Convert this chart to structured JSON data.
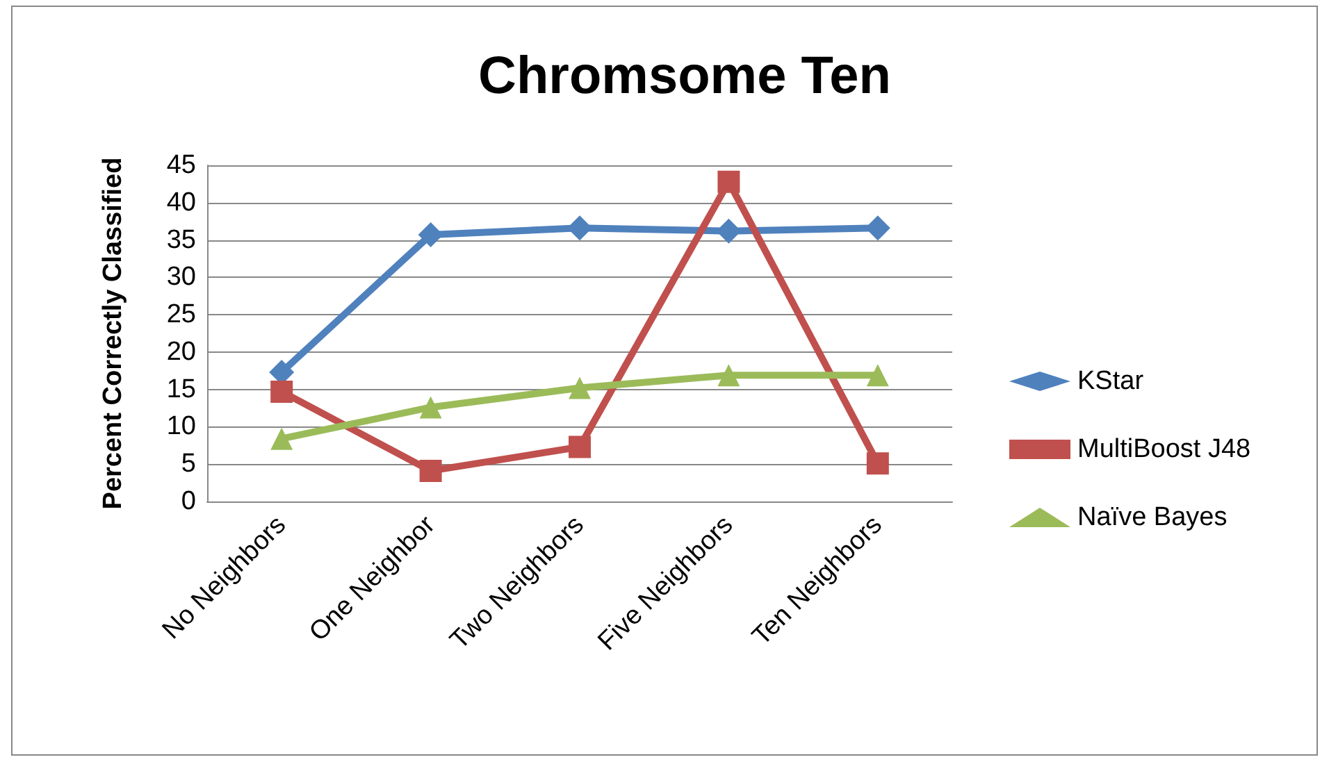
{
  "chart_data": {
    "type": "line",
    "title": "Chromsome Ten",
    "ylabel": "Percent Correctly Classified",
    "categories": [
      "No Neighbors",
      "One Neighbor",
      "Two Neighbors",
      "Five Neighbors",
      "Ten Neighbors"
    ],
    "series": [
      {
        "name": "KStar",
        "color": "#4f81bd",
        "marker": "diamond",
        "values": [
          17.3,
          35.7,
          36.6,
          36.2,
          36.6
        ]
      },
      {
        "name": "MultiBoost J48",
        "color": "#c0504d",
        "marker": "square",
        "values": [
          14.7,
          4.1,
          7.3,
          42.8,
          5.1
        ]
      },
      {
        "name": "Naïve Bayes",
        "color": "#9bbb59",
        "marker": "triangle",
        "values": [
          8.4,
          12.6,
          15.2,
          16.9,
          16.9
        ]
      }
    ],
    "ylim": [
      0,
      45
    ],
    "yticks": [
      0,
      5,
      10,
      15,
      20,
      25,
      30,
      35,
      40,
      45
    ],
    "grid": "y",
    "legend": "right",
    "line_style": "solid"
  }
}
